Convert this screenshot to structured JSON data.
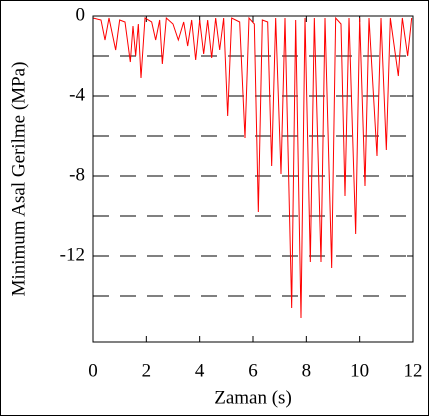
{
  "chart_data": {
    "type": "line",
    "x_label": "Zaman (s)",
    "y_label": "Minimum Asal Gerilme (MPa)",
    "xlim": [
      0,
      12
    ],
    "ylim": [
      -16.3,
      0
    ],
    "xticks": [
      0,
      2,
      4,
      6,
      8,
      10,
      12
    ],
    "yticks": [
      0,
      -4,
      -8,
      -12
    ],
    "ygrid": [
      -2,
      -4,
      -6,
      -8,
      -10,
      -12,
      -14
    ],
    "grid": true,
    "x": [
      0.0,
      0.3,
      0.45,
      0.6,
      0.85,
      1.0,
      1.2,
      1.4,
      1.5,
      1.6,
      1.7,
      1.8,
      1.95,
      2.2,
      2.35,
      2.5,
      2.6,
      2.75,
      3.0,
      3.2,
      3.4,
      3.55,
      3.7,
      3.85,
      4.0,
      4.15,
      4.3,
      4.45,
      4.6,
      4.75,
      4.9,
      5.05,
      5.2,
      5.5,
      5.7,
      5.85,
      6.05,
      6.2,
      6.35,
      6.55,
      6.7,
      6.85,
      7.05,
      7.2,
      7.45,
      7.6,
      7.8,
      7.95,
      8.15,
      8.3,
      8.55,
      8.7,
      8.95,
      9.1,
      9.3,
      9.45,
      9.6,
      9.85,
      10.0,
      10.2,
      10.35,
      10.65,
      10.8,
      11.0,
      11.15,
      11.45,
      11.6,
      11.8,
      11.95
    ],
    "series": [
      {
        "color": "#ff0000",
        "values": [
          -0.1,
          -0.2,
          -1.2,
          -0.1,
          -1.7,
          -0.2,
          -0.3,
          -2.3,
          -0.5,
          -2.0,
          -0.4,
          -3.1,
          -0.1,
          -0.3,
          -1.2,
          -0.2,
          -2.4,
          -0.1,
          -0.4,
          -1.2,
          -0.3,
          -1.5,
          -0.2,
          -2.2,
          -0.2,
          -1.9,
          -0.2,
          -2.1,
          -0.1,
          -1.7,
          -0.1,
          -5.0,
          -0.1,
          -0.3,
          -6.1,
          -0.1,
          -0.4,
          -9.8,
          -0.2,
          -0.3,
          -7.5,
          -0.1,
          -7.9,
          -0.1,
          -14.6,
          -0.2,
          -15.1,
          -0.1,
          -12.3,
          -0.1,
          -12.3,
          -0.1,
          -12.6,
          -0.1,
          -0.4,
          -9.0,
          -0.1,
          -10.9,
          -0.1,
          -8.5,
          -0.1,
          -7.0,
          -0.1,
          -6.7,
          -0.1,
          -3.0,
          -0.1,
          -2.0,
          -0.1
        ]
      }
    ]
  }
}
